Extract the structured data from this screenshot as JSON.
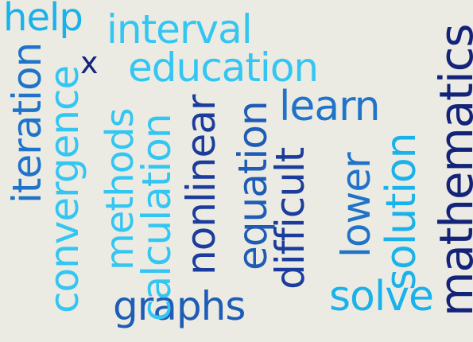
{
  "word_cloud": {
    "background": "#ebebe3",
    "palette": {
      "cyan": "#1ab2ea",
      "light_cyan": "#34c6f2",
      "blue": "#1f73c8",
      "mid_blue": "#1e5cb5",
      "dark_blue": "#1b3c9c",
      "navy": "#13237a"
    },
    "words": [
      {
        "text": "help",
        "color": "#1ab2ea",
        "orientation": "horizontal"
      },
      {
        "text": "interval",
        "color": "#34c6f2",
        "orientation": "horizontal"
      },
      {
        "text": "x",
        "color": "#13237a",
        "orientation": "horizontal"
      },
      {
        "text": "education",
        "color": "#34c6f2",
        "orientation": "horizontal"
      },
      {
        "text": "learn",
        "color": "#1f73c8",
        "orientation": "horizontal"
      },
      {
        "text": "graphs",
        "color": "#1e5cb5",
        "orientation": "horizontal"
      },
      {
        "text": "solve",
        "color": "#1ab2ea",
        "orientation": "horizontal"
      },
      {
        "text": "iteration",
        "color": "#1f73c8",
        "orientation": "vertical"
      },
      {
        "text": "convergence",
        "color": "#34c6f2",
        "orientation": "vertical"
      },
      {
        "text": "methods",
        "color": "#34c6f2",
        "orientation": "vertical"
      },
      {
        "text": "calculation",
        "color": "#34c6f2",
        "orientation": "vertical"
      },
      {
        "text": "nonlinear",
        "color": "#1b3c9c",
        "orientation": "vertical"
      },
      {
        "text": "equation",
        "color": "#1e5cb5",
        "orientation": "vertical"
      },
      {
        "text": "difficult",
        "color": "#1b3c9c",
        "orientation": "vertical"
      },
      {
        "text": "lower",
        "color": "#1f73c8",
        "orientation": "vertical"
      },
      {
        "text": "solution",
        "color": "#1ab2ea",
        "orientation": "vertical"
      },
      {
        "text": "mathematics",
        "color": "#13237a",
        "orientation": "vertical"
      }
    ]
  }
}
